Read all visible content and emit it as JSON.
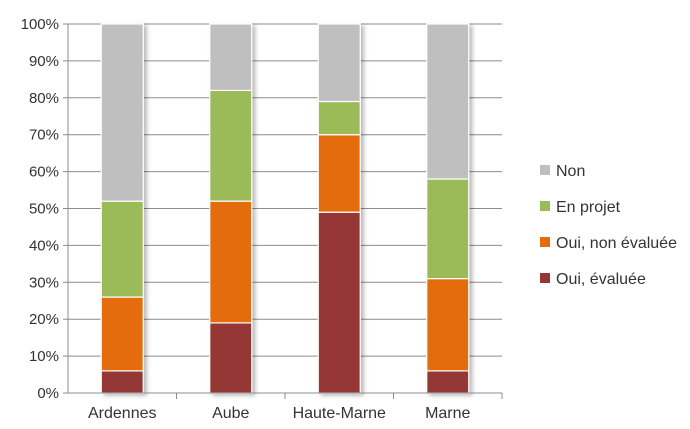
{
  "chart_data": {
    "type": "bar",
    "stacked": true,
    "percent": true,
    "categories": [
      "Ardennes",
      "Aube",
      "Haute-Marne",
      "Marne"
    ],
    "series": [
      {
        "name": "Oui, évaluée",
        "color": "#953735",
        "values": [
          6,
          19,
          49,
          6
        ]
      },
      {
        "name": "Oui, non évaluée",
        "color": "#E46C0A",
        "values": [
          20,
          33,
          21,
          25
        ]
      },
      {
        "name": "En projet",
        "color": "#9BBB59",
        "values": [
          26,
          30,
          9,
          27
        ]
      },
      {
        "name": "Non",
        "color": "#BFBFBF",
        "values": [
          48,
          18,
          21,
          42
        ]
      }
    ],
    "y_ticks": [
      "0%",
      "10%",
      "20%",
      "30%",
      "40%",
      "50%",
      "60%",
      "70%",
      "80%",
      "90%",
      "100%"
    ],
    "ylim": [
      0,
      100
    ],
    "grid": true,
    "legend_position": "right",
    "legend_order": [
      "Non",
      "En projet",
      "Oui, non évaluée",
      "Oui, évaluée"
    ]
  }
}
